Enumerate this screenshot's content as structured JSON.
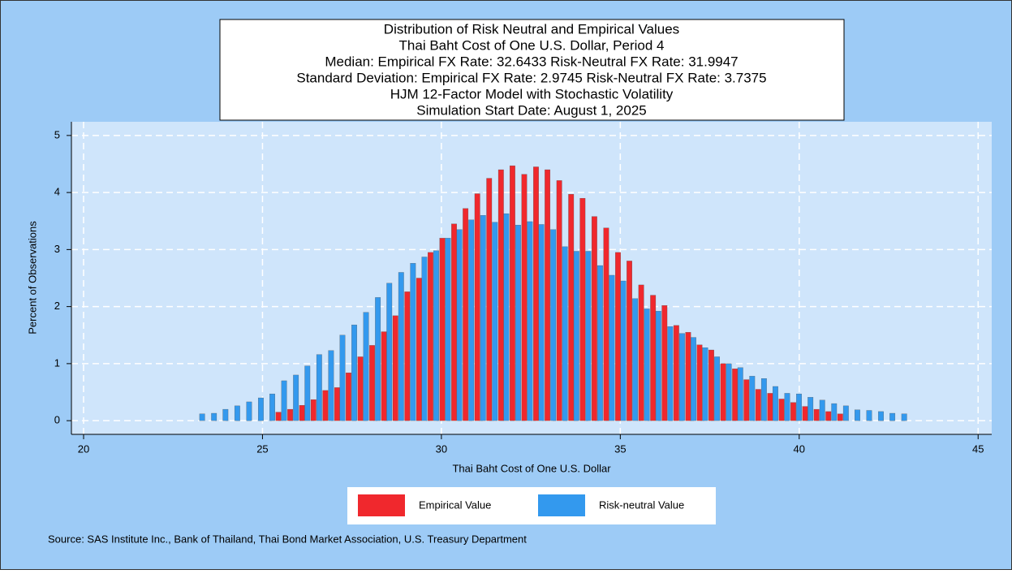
{
  "chart_data": {
    "type": "bar",
    "title_lines": [
      "Distribution of Risk Neutral and Empirical Values",
      "Thai Baht Cost of One U.S. Dollar, Period 4",
      "Median: Empirical FX Rate: 32.6433   Risk-Neutral FX Rate: 31.9947",
      "Standard Deviation: Empirical FX Rate:  2.9745   Risk-Neutral FX Rate:  3.7375",
      "HJM 12-Factor Model with Stochastic Volatility",
      "Simulation Start Date: August 1, 2025"
    ],
    "x_label": "Thai Baht Cost of One U.S. Dollar",
    "y_label": "Percent of Observations",
    "source": "Source: SAS Institute Inc., Bank of Thailand, Thai Bond Market Association, U.S. Treasury Department",
    "x": [
      23.4,
      23.73,
      24.05,
      24.38,
      24.71,
      25.04,
      25.36,
      25.69,
      26.02,
      26.34,
      26.67,
      27.0,
      27.32,
      27.65,
      27.98,
      28.31,
      28.63,
      28.96,
      29.29,
      29.61,
      29.94,
      30.27,
      30.59,
      30.92,
      31.25,
      31.58,
      31.9,
      32.23,
      32.56,
      32.88,
      33.21,
      33.54,
      33.86,
      34.19,
      34.52,
      34.85,
      35.17,
      35.5,
      35.83,
      36.15,
      36.48,
      36.81,
      37.13,
      37.46,
      37.79,
      38.12,
      38.44,
      38.77,
      39.1,
      39.42,
      39.75,
      40.08,
      40.4,
      40.73,
      41.06,
      41.39,
      41.71,
      42.04,
      42.37,
      42.69,
      43.02
    ],
    "series": [
      {
        "name": "Empirical Value",
        "color": "#f0282d",
        "values": [
          null,
          null,
          null,
          null,
          null,
          null,
          0.15,
          0.2,
          0.27,
          0.37,
          0.53,
          0.58,
          0.84,
          1.12,
          1.32,
          1.56,
          1.84,
          2.26,
          2.5,
          2.95,
          3.2,
          3.45,
          3.72,
          3.98,
          4.25,
          4.4,
          4.47,
          4.32,
          4.45,
          4.4,
          4.21,
          3.97,
          3.9,
          3.58,
          3.38,
          2.95,
          2.8,
          2.38,
          2.2,
          2.02,
          1.67,
          1.55,
          1.33,
          1.24,
          1.0,
          0.91,
          0.72,
          0.55,
          0.48,
          0.38,
          0.32,
          0.25,
          0.2,
          0.16,
          0.12,
          null,
          null,
          null,
          null,
          null,
          null
        ]
      },
      {
        "name": "Risk-neutral Value",
        "color": "#3399ee",
        "values": [
          0.12,
          0.13,
          0.2,
          0.26,
          0.33,
          0.4,
          0.47,
          0.7,
          0.8,
          0.96,
          1.16,
          1.23,
          1.5,
          1.68,
          1.9,
          2.16,
          2.41,
          2.6,
          2.76,
          2.87,
          2.98,
          3.2,
          3.35,
          3.52,
          3.6,
          3.48,
          3.63,
          3.43,
          3.49,
          3.44,
          3.35,
          3.05,
          2.97,
          2.97,
          2.72,
          2.55,
          2.45,
          2.14,
          1.96,
          1.92,
          1.65,
          1.53,
          1.46,
          1.28,
          1.12,
          1.0,
          0.93,
          0.78,
          0.74,
          0.6,
          0.48,
          0.47,
          0.41,
          0.36,
          0.3,
          0.26,
          0.19,
          0.18,
          0.16,
          0.13,
          0.12
        ]
      }
    ],
    "xlim": [
      19.66,
      45.38
    ],
    "xticks": [
      20,
      25,
      30,
      35,
      40,
      45
    ],
    "ylim": [
      -0.24,
      5.24
    ],
    "yticks": [
      0,
      1,
      2,
      3,
      4,
      5
    ],
    "grid": true
  }
}
